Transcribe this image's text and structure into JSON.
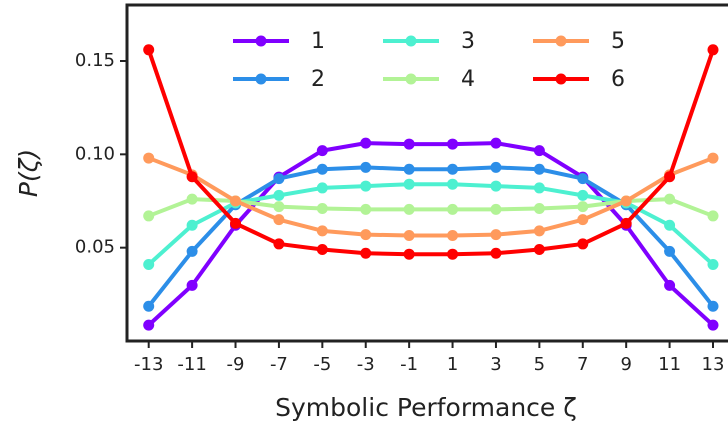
{
  "chart_data": {
    "type": "line",
    "x_label": "Symbolic Performance ζ",
    "y_label": "P(ζ)",
    "x": [
      -13,
      -11,
      -9,
      -7,
      -5,
      -3,
      -1,
      1,
      3,
      5,
      7,
      9,
      11,
      13
    ],
    "xlim": [
      -14,
      14
    ],
    "xticks": [
      -13,
      -11,
      -9,
      -7,
      -5,
      -3,
      -1,
      1,
      3,
      5,
      7,
      9,
      11,
      13
    ],
    "ylim": [
      0,
      0.18
    ],
    "yticks": [
      0.05,
      {
        "value": 0.1,
        "label": "0.10"
      },
      0.15
    ],
    "grid": false,
    "legend": "top",
    "series": [
      {
        "name": "1",
        "color": "#8000ff",
        "values": [
          0.0085,
          0.0298,
          0.062,
          0.0878,
          0.102,
          0.106,
          0.1055,
          0.1055,
          0.106,
          0.102,
          0.0878,
          0.062,
          0.0298,
          0.0085
        ]
      },
      {
        "name": "2",
        "color": "#2c8ee8",
        "values": [
          0.0186,
          0.048,
          0.073,
          0.087,
          0.092,
          0.093,
          0.092,
          0.092,
          0.093,
          0.092,
          0.087,
          0.073,
          0.048,
          0.0186
        ]
      },
      {
        "name": "3",
        "color": "#4df0d0",
        "values": [
          0.041,
          0.062,
          0.074,
          0.078,
          0.082,
          0.083,
          0.084,
          0.084,
          0.083,
          0.082,
          0.078,
          0.074,
          0.062,
          0.041
        ]
      },
      {
        "name": "4",
        "color": "#b2f396",
        "values": [
          0.067,
          0.076,
          0.075,
          0.072,
          0.071,
          0.0705,
          0.0705,
          0.0705,
          0.0705,
          0.071,
          0.072,
          0.075,
          0.076,
          0.067
        ]
      },
      {
        "name": "5",
        "color": "#ff9a5c",
        "values": [
          0.098,
          0.089,
          0.075,
          0.065,
          0.059,
          0.057,
          0.0565,
          0.0565,
          0.057,
          0.059,
          0.065,
          0.075,
          0.089,
          0.098
        ]
      },
      {
        "name": "6",
        "color": "#ff0000",
        "values": [
          0.156,
          0.088,
          0.063,
          0.052,
          0.049,
          0.047,
          0.0465,
          0.0465,
          0.047,
          0.049,
          0.052,
          0.063,
          0.088,
          0.156
        ]
      }
    ]
  }
}
